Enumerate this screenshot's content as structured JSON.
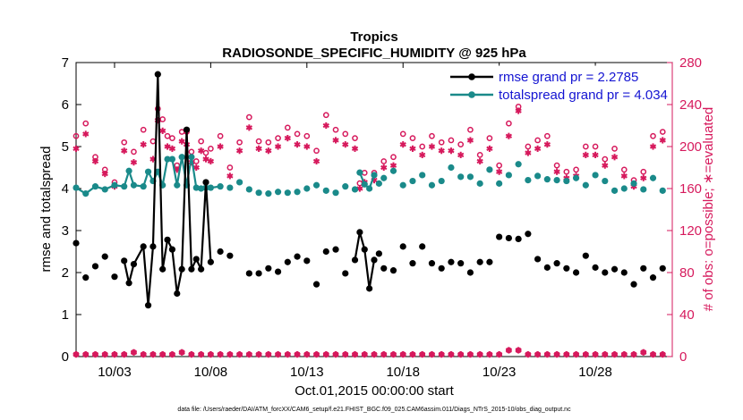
{
  "chart_data": {
    "type": "line",
    "title": "Tropics",
    "subtitle": "RADIOSONDE_SPECIFIC_HUMIDITY @ 925 hPa",
    "xlabel": "Oct.01,2015 00:00:00 start",
    "ylabel_left": "rmse and totalspread",
    "ylabel_right": "# of obs: o=possible; ∗=evaluated",
    "footnote": "data file: /Users/raeder/DAI/ATM_forcXX/CAM6_setup/f.e21.FHIST_BGC.f09_025.CAM6assim.011/Diags_NTrS_2015-10/obs_diag_output.nc",
    "xlim": [
      1,
      32
    ],
    "ylim_left": [
      0,
      7
    ],
    "ylim_right": [
      0,
      280
    ],
    "x_ticks": [
      3,
      8,
      13,
      18,
      23,
      28
    ],
    "x_tick_labels": [
      "10/03",
      "10/08",
      "10/13",
      "10/18",
      "10/23",
      "10/28"
    ],
    "y_ticks_left": [
      0,
      1,
      2,
      3,
      4,
      5,
      6,
      7
    ],
    "y_ticks_right": [
      0,
      40,
      80,
      120,
      160,
      200,
      240,
      280
    ],
    "colors": {
      "rmse": "#000000",
      "spread": "#1a8a8a",
      "obs": "#d6195c",
      "legend_text": "#1414d2",
      "axis": "#000000"
    },
    "legend": [
      {
        "name": "rmse grand pr = 2.2785",
        "color": "#000000"
      },
      {
        "name": "totalspread grand pr = 4.034",
        "color": "#1a8a8a"
      }
    ],
    "legend_position": "top-right",
    "rmse": [
      [
        1.0,
        2.7
      ],
      [
        1.5,
        1.88
      ],
      [
        2.0,
        2.15
      ],
      [
        2.5,
        2.38
      ],
      [
        3.0,
        1.9
      ],
      [
        3.5,
        2.28
      ],
      [
        3.75,
        1.75
      ],
      [
        4.0,
        2.2
      ],
      [
        4.5,
        2.62
      ],
      [
        4.75,
        1.22
      ],
      [
        5.0,
        2.62
      ],
      [
        5.25,
        6.72
      ],
      [
        5.5,
        2.08
      ],
      [
        5.75,
        2.78
      ],
      [
        6.0,
        2.55
      ],
      [
        6.25,
        1.5
      ],
      [
        6.5,
        2.08
      ],
      [
        6.75,
        5.4
      ],
      [
        7.0,
        2.08
      ],
      [
        7.25,
        2.32
      ],
      [
        7.5,
        2.08
      ],
      [
        7.75,
        4.15
      ],
      [
        8.0,
        2.25
      ],
      [
        8.5,
        2.5
      ],
      [
        9.0,
        2.4
      ]
    ],
    "rmse_sparse": [
      [
        10.0,
        1.98
      ],
      [
        10.5,
        1.98
      ],
      [
        11.0,
        2.1
      ],
      [
        11.5,
        2.02
      ],
      [
        12.0,
        2.25
      ],
      [
        12.5,
        2.38
      ],
      [
        13.0,
        2.28
      ],
      [
        13.5,
        1.72
      ],
      [
        14.0,
        2.5
      ],
      [
        14.5,
        2.55
      ],
      [
        15.0,
        1.98
      ],
      [
        15.5,
        2.3
      ],
      [
        15.75,
        2.96
      ],
      [
        16.0,
        2.55
      ],
      [
        16.25,
        1.62
      ],
      [
        16.5,
        2.3
      ],
      [
        16.75,
        2.45
      ],
      [
        17.0,
        2.1
      ],
      [
        17.5,
        2.05
      ],
      [
        18.0,
        2.62
      ],
      [
        18.5,
        2.22
      ],
      [
        19.0,
        2.62
      ],
      [
        19.5,
        2.22
      ],
      [
        20.0,
        2.1
      ],
      [
        20.5,
        2.25
      ],
      [
        21.0,
        2.22
      ],
      [
        21.5,
        2.0
      ],
      [
        22.0,
        2.25
      ],
      [
        22.5,
        2.25
      ],
      [
        23.0,
        2.85
      ],
      [
        23.5,
        2.82
      ],
      [
        24.0,
        2.8
      ],
      [
        24.5,
        2.92
      ],
      [
        25.0,
        2.32
      ],
      [
        25.5,
        2.12
      ],
      [
        26.0,
        2.22
      ],
      [
        26.5,
        2.1
      ],
      [
        27.0,
        2.0
      ],
      [
        27.5,
        2.4
      ],
      [
        28.0,
        2.12
      ],
      [
        28.5,
        2.0
      ],
      [
        29.0,
        2.08
      ],
      [
        29.5,
        2.0
      ],
      [
        30.0,
        1.72
      ],
      [
        30.5,
        2.1
      ],
      [
        31.0,
        1.88
      ],
      [
        31.5,
        2.1
      ]
    ],
    "spread": [
      [
        1.0,
        4.02
      ],
      [
        1.5,
        3.88
      ],
      [
        2.0,
        4.05
      ],
      [
        2.5,
        3.98
      ],
      [
        3.0,
        4.08
      ],
      [
        3.5,
        4.05
      ],
      [
        3.75,
        4.42
      ],
      [
        4.0,
        4.08
      ],
      [
        4.5,
        4.05
      ],
      [
        4.75,
        4.4
      ],
      [
        5.0,
        4.18
      ],
      [
        5.25,
        4.4
      ],
      [
        5.5,
        4.08
      ],
      [
        5.75,
        4.7
      ],
      [
        6.0,
        4.7
      ],
      [
        6.25,
        4.08
      ],
      [
        6.5,
        4.75
      ],
      [
        6.75,
        4.08
      ],
      [
        7.0,
        4.75
      ],
      [
        7.25,
        4.02
      ],
      [
        7.5,
        4.0
      ],
      [
        7.75,
        4.02
      ],
      [
        8.0,
        4.02
      ],
      [
        8.5,
        4.05
      ]
    ],
    "spread_sparse": [
      [
        9.0,
        4.02
      ],
      [
        9.5,
        4.15
      ],
      [
        10.0,
        3.98
      ],
      [
        10.5,
        3.9
      ],
      [
        11.0,
        3.88
      ],
      [
        11.5,
        3.92
      ],
      [
        12.0,
        3.9
      ],
      [
        12.5,
        3.92
      ],
      [
        13.0,
        4.0
      ],
      [
        13.5,
        4.08
      ],
      [
        14.0,
        3.95
      ],
      [
        14.5,
        3.9
      ],
      [
        15.0,
        4.05
      ],
      [
        15.5,
        3.98
      ],
      [
        15.75,
        4.38
      ],
      [
        16.0,
        4.1
      ],
      [
        16.25,
        4.0
      ],
      [
        16.5,
        4.32
      ],
      [
        16.75,
        4.12
      ],
      [
        17.0,
        4.25
      ],
      [
        17.5,
        4.42
      ],
      [
        18.0,
        4.08
      ],
      [
        18.5,
        4.18
      ],
      [
        19.0,
        4.32
      ],
      [
        19.5,
        4.08
      ],
      [
        20.0,
        4.18
      ],
      [
        20.5,
        4.5
      ],
      [
        21.0,
        4.28
      ],
      [
        21.5,
        4.28
      ],
      [
        22.0,
        4.12
      ],
      [
        22.5,
        4.45
      ],
      [
        23.0,
        4.12
      ],
      [
        23.5,
        4.32
      ],
      [
        24.0,
        4.58
      ],
      [
        24.5,
        4.2
      ],
      [
        25.0,
        4.3
      ],
      [
        25.5,
        4.22
      ],
      [
        26.0,
        4.2
      ],
      [
        26.5,
        4.18
      ],
      [
        27.0,
        4.25
      ],
      [
        27.5,
        4.08
      ],
      [
        28.0,
        4.32
      ],
      [
        28.5,
        4.18
      ],
      [
        29.0,
        3.95
      ],
      [
        29.5,
        4.0
      ],
      [
        30.0,
        4.12
      ],
      [
        30.5,
        3.98
      ],
      [
        31.0,
        4.25
      ],
      [
        31.5,
        3.95
      ]
    ],
    "obs_possible": [
      [
        1.0,
        210
      ],
      [
        1.5,
        222
      ],
      [
        2.0,
        190
      ],
      [
        2.5,
        178
      ],
      [
        3.0,
        166
      ],
      [
        3.5,
        204
      ],
      [
        4.0,
        195
      ],
      [
        4.5,
        216
      ],
      [
        5.0,
        205
      ],
      [
        5.25,
        236
      ],
      [
        5.5,
        226
      ],
      [
        5.75,
        210
      ],
      [
        6.0,
        208
      ],
      [
        6.25,
        182
      ],
      [
        6.5,
        214
      ],
      [
        6.75,
        214
      ],
      [
        7.0,
        195
      ],
      [
        7.25,
        186
      ],
      [
        7.5,
        205
      ],
      [
        7.75,
        194
      ],
      [
        8.0,
        198
      ],
      [
        8.5,
        210
      ],
      [
        9.0,
        180
      ],
      [
        9.5,
        204
      ],
      [
        10.0,
        228
      ],
      [
        10.5,
        205
      ],
      [
        11.0,
        204
      ],
      [
        11.5,
        208
      ],
      [
        12.0,
        218
      ],
      [
        12.5,
        212
      ],
      [
        13.0,
        210
      ],
      [
        13.5,
        196
      ],
      [
        14.0,
        230
      ],
      [
        14.5,
        216
      ],
      [
        15.0,
        212
      ],
      [
        15.5,
        208
      ],
      [
        15.75,
        165
      ],
      [
        16.0,
        175
      ],
      [
        16.5,
        175
      ],
      [
        17.0,
        186
      ],
      [
        17.5,
        190
      ],
      [
        18.0,
        212
      ],
      [
        18.5,
        208
      ],
      [
        19.0,
        200
      ],
      [
        19.5,
        210
      ],
      [
        20.0,
        204
      ],
      [
        20.5,
        206
      ],
      [
        21.0,
        202
      ],
      [
        21.5,
        216
      ],
      [
        22.0,
        192
      ],
      [
        22.5,
        208
      ],
      [
        23.0,
        182
      ],
      [
        23.5,
        222
      ],
      [
        24.0,
        238
      ],
      [
        24.5,
        200
      ],
      [
        25.0,
        206
      ],
      [
        25.5,
        210
      ],
      [
        26.0,
        182
      ],
      [
        26.5,
        176
      ],
      [
        27.0,
        178
      ],
      [
        27.5,
        200
      ],
      [
        28.0,
        200
      ],
      [
        28.5,
        188
      ],
      [
        29.0,
        198
      ],
      [
        29.5,
        178
      ],
      [
        30.0,
        168
      ],
      [
        30.5,
        176
      ],
      [
        31.0,
        210
      ],
      [
        31.5,
        214
      ]
    ],
    "obs_evaluated": [
      [
        1.0,
        198
      ],
      [
        1.5,
        212
      ],
      [
        2.0,
        186
      ],
      [
        2.5,
        174
      ],
      [
        3.0,
        162
      ],
      [
        3.5,
        196
      ],
      [
        4.0,
        185
      ],
      [
        4.5,
        202
      ],
      [
        5.0,
        188
      ],
      [
        5.25,
        225
      ],
      [
        5.5,
        215
      ],
      [
        5.75,
        200
      ],
      [
        6.0,
        198
      ],
      [
        6.25,
        178
      ],
      [
        6.5,
        205
      ],
      [
        6.75,
        202
      ],
      [
        7.0,
        185
      ],
      [
        7.25,
        180
      ],
      [
        7.5,
        196
      ],
      [
        7.75,
        188
      ],
      [
        8.0,
        186
      ],
      [
        8.5,
        200
      ],
      [
        9.0,
        172
      ],
      [
        9.5,
        196
      ],
      [
        10.0,
        218
      ],
      [
        10.5,
        198
      ],
      [
        11.0,
        196
      ],
      [
        11.5,
        200
      ],
      [
        12.0,
        208
      ],
      [
        12.5,
        202
      ],
      [
        13.0,
        200
      ],
      [
        13.5,
        186
      ],
      [
        14.0,
        220
      ],
      [
        14.5,
        206
      ],
      [
        15.0,
        202
      ],
      [
        15.5,
        198
      ],
      [
        15.75,
        160
      ],
      [
        16.0,
        166
      ],
      [
        16.5,
        168
      ],
      [
        17.0,
        180
      ],
      [
        17.5,
        182
      ],
      [
        18.0,
        202
      ],
      [
        18.5,
        198
      ],
      [
        19.0,
        192
      ],
      [
        19.5,
        200
      ],
      [
        20.0,
        196
      ],
      [
        20.5,
        196
      ],
      [
        21.0,
        192
      ],
      [
        21.5,
        206
      ],
      [
        22.0,
        186
      ],
      [
        22.5,
        198
      ],
      [
        23.0,
        176
      ],
      [
        23.5,
        210
      ],
      [
        24.0,
        234
      ],
      [
        24.5,
        194
      ],
      [
        25.0,
        198
      ],
      [
        25.5,
        202
      ],
      [
        26.0,
        176
      ],
      [
        26.5,
        170
      ],
      [
        27.0,
        172
      ],
      [
        27.5,
        192
      ],
      [
        28.0,
        192
      ],
      [
        28.5,
        182
      ],
      [
        29.0,
        190
      ],
      [
        29.5,
        172
      ],
      [
        30.0,
        162
      ],
      [
        30.5,
        170
      ],
      [
        31.0,
        200
      ],
      [
        31.5,
        206
      ]
    ],
    "obs_near_zero": {
      "x_start": 1.0,
      "x_step": 0.5,
      "count": 62,
      "base_value": 2,
      "bumps": [
        [
          4.0,
          4
        ],
        [
          5.25,
          6
        ],
        [
          6.5,
          4
        ],
        [
          15.75,
          6
        ],
        [
          16.25,
          10
        ],
        [
          23.5,
          6
        ],
        [
          24.0,
          6
        ],
        [
          30.5,
          4
        ]
      ]
    }
  }
}
